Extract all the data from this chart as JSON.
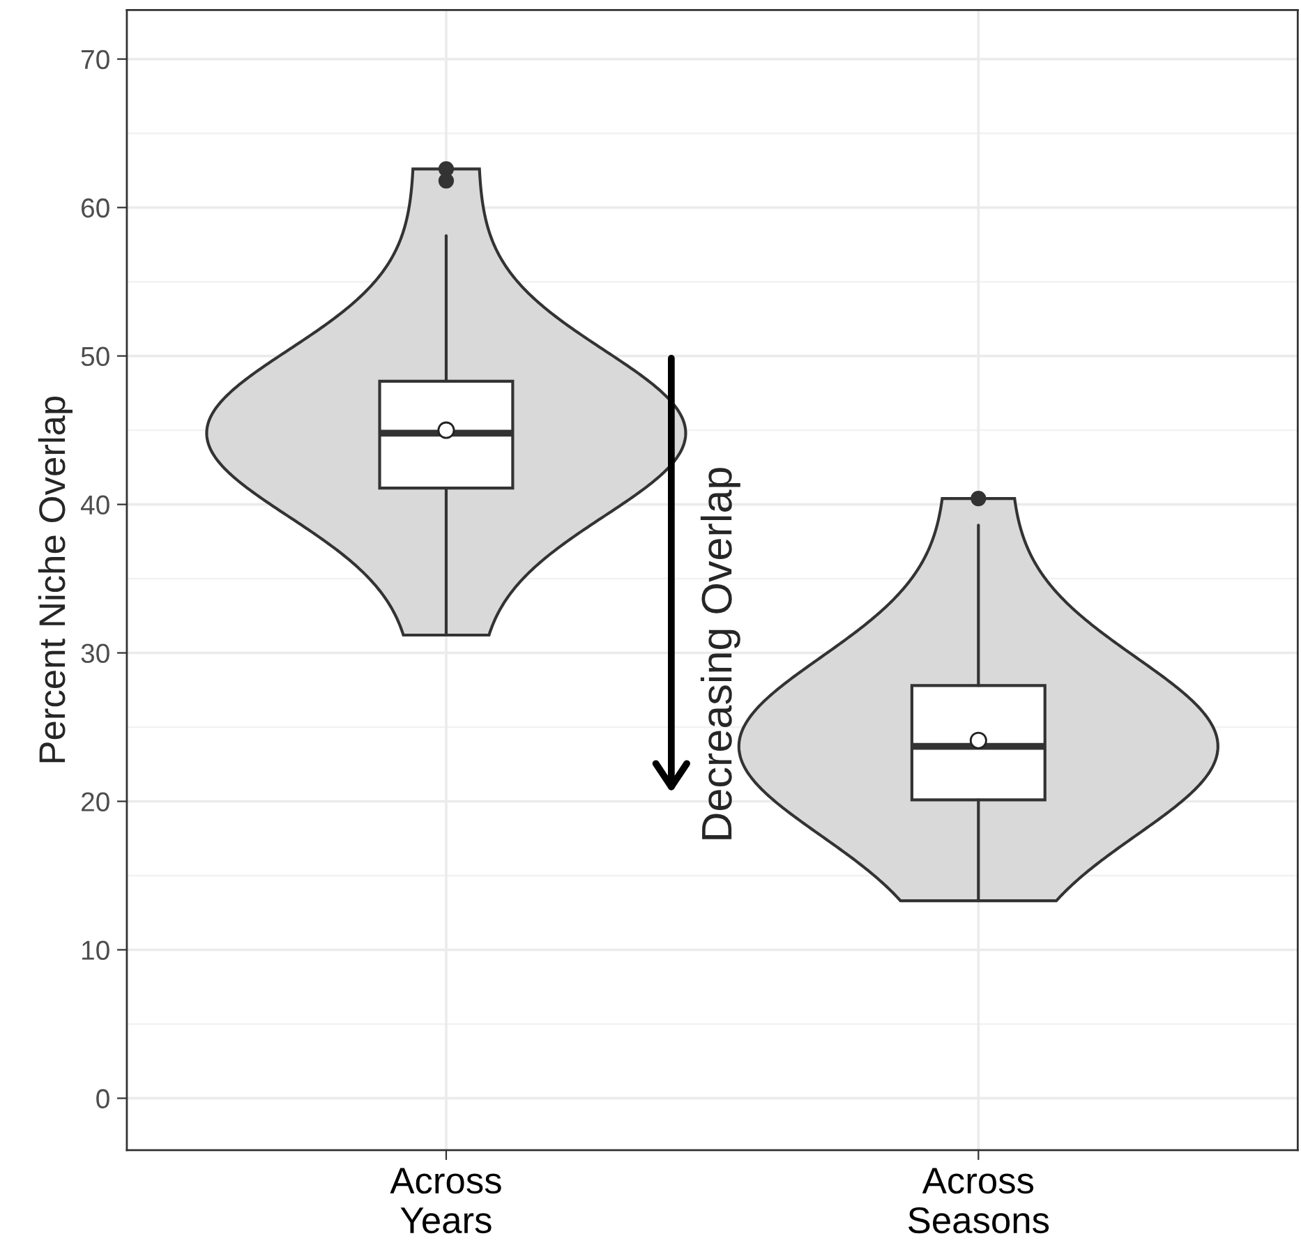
{
  "chart_data": {
    "type": "box",
    "ylabel": "Percent Niche Overlap",
    "categories": [
      "Across\nYears",
      "Across\nSeasons"
    ],
    "boxes": [
      {
        "low": 31.2,
        "q1": 41.1,
        "median": 44.8,
        "q3": 48.3,
        "high": 58.1,
        "mean": 45.0,
        "outliers": [
          61.8,
          62.6
        ]
      },
      {
        "low": 13.3,
        "q1": 20.1,
        "median": 23.7,
        "q3": 27.8,
        "high": 38.6,
        "mean": 24.1,
        "outliers": [
          40.4
        ]
      }
    ],
    "ylim": [
      -3.5,
      73.3
    ],
    "yticks": [
      0,
      10,
      20,
      30,
      40,
      50,
      60,
      70
    ],
    "grid": true,
    "annotations": [
      "Decreasing Overlap"
    ]
  }
}
